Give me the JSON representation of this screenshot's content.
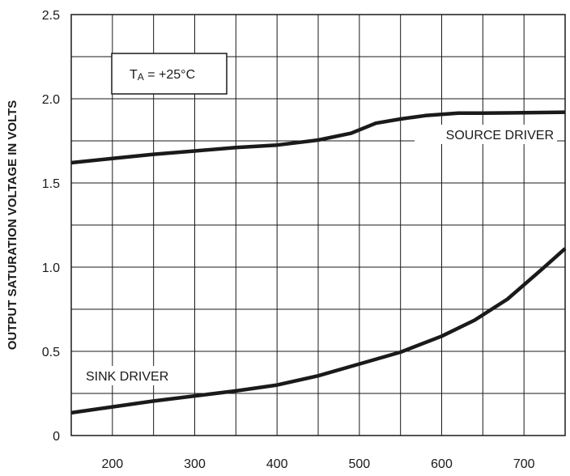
{
  "chart_data": {
    "type": "line",
    "title": "",
    "xlabel": "",
    "ylabel": "OUTPUT SATURATION VOLTAGE IN VOLTS",
    "xlim": [
      150,
      750
    ],
    "ylim": [
      0,
      2.5
    ],
    "x_ticks": [
      200,
      300,
      400,
      500,
      600,
      700
    ],
    "x_tick_labels": [
      "200",
      "300",
      "400",
      "500",
      "600",
      "700"
    ],
    "y_ticks": [
      0,
      0.5,
      1.0,
      1.5,
      2.0,
      2.5
    ],
    "y_tick_labels": [
      "0",
      "0.5",
      "1.0",
      "1.5",
      "2.0",
      "2.5"
    ],
    "grid": true,
    "condition_box": {
      "t": "T",
      "sub": "A",
      "rest": " = +25°C"
    },
    "series": [
      {
        "name": "SOURCE DRIVER",
        "x": [
          150,
          200,
          250,
          300,
          350,
          400,
          450,
          490,
          520,
          550,
          580,
          620,
          650,
          700,
          750
        ],
        "y": [
          1.62,
          1.645,
          1.67,
          1.69,
          1.71,
          1.725,
          1.755,
          1.795,
          1.855,
          1.88,
          1.9,
          1.915,
          1.915,
          1.917,
          1.92
        ]
      },
      {
        "name": "SINK DRIVER",
        "x": [
          150,
          200,
          250,
          300,
          350,
          400,
          450,
          500,
          550,
          600,
          640,
          680,
          720,
          750
        ],
        "y": [
          0.135,
          0.17,
          0.205,
          0.235,
          0.265,
          0.3,
          0.355,
          0.425,
          0.495,
          0.59,
          0.685,
          0.81,
          0.98,
          1.11
        ]
      }
    ]
  }
}
